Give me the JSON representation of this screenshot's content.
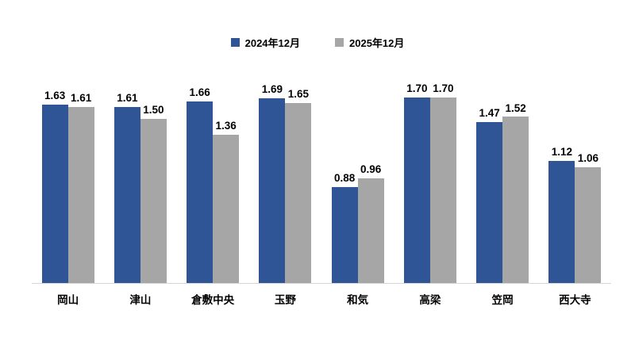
{
  "chart_data": {
    "type": "bar",
    "title": "",
    "xlabel": "",
    "ylabel": "",
    "categories": [
      "岡山",
      "津山",
      "倉敷中央",
      "玉野",
      "和気",
      "高梁",
      "笠岡",
      "西大寺"
    ],
    "series": [
      {
        "name": "2024年12月",
        "color": "#2f5597",
        "values": [
          1.63,
          1.61,
          1.66,
          1.69,
          0.88,
          1.7,
          1.47,
          1.12
        ]
      },
      {
        "name": "2025年12月",
        "color": "#a6a6a6",
        "values": [
          1.61,
          1.5,
          1.36,
          1.65,
          0.96,
          1.7,
          1.52,
          1.06
        ]
      }
    ],
    "value_labels_shown": true,
    "value_label_decimals": 2,
    "ylim": [
      0,
      1.9
    ],
    "grid": false,
    "y_axis_ticks_shown": false,
    "legend_position": "top",
    "axis_line_color": "#d6d6d6",
    "text_color": "#000000",
    "background_color": "#ffffff"
  }
}
